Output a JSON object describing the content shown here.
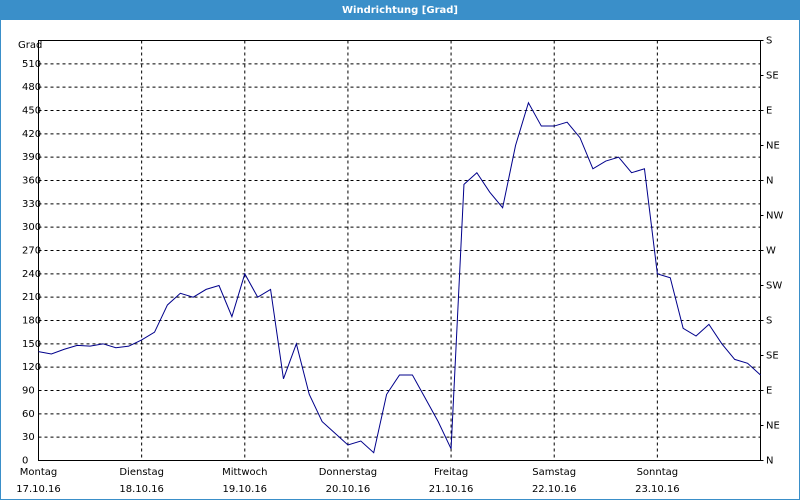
{
  "chart_data": {
    "type": "line",
    "title": "Windrichtung [Grad]",
    "y_label": "Grad",
    "categories": [
      "17.10.16",
      null,
      null,
      null,
      null,
      null,
      null,
      null,
      "18.10.16",
      null,
      null,
      null,
      null,
      null,
      null,
      null,
      "19.10.16",
      null,
      null,
      null,
      null,
      null,
      null,
      null,
      "20.10.16",
      null,
      null,
      null,
      null,
      null,
      null,
      null,
      "21.10.16",
      null,
      null,
      null,
      null,
      null,
      null,
      null,
      "22.10.16",
      null,
      null,
      null,
      null,
      null,
      null,
      null,
      "23.10.16",
      null,
      null,
      null,
      null,
      null,
      null,
      null,
      null
    ],
    "weekdays": [
      "Montag",
      null,
      null,
      null,
      null,
      null,
      null,
      null,
      "Dienstag",
      null,
      null,
      null,
      null,
      null,
      null,
      null,
      "Mittwoch",
      null,
      null,
      null,
      null,
      null,
      null,
      null,
      "Donnerstag",
      null,
      null,
      null,
      null,
      null,
      null,
      null,
      "Freitag",
      null,
      null,
      null,
      null,
      null,
      null,
      null,
      "Samstag",
      null,
      null,
      null,
      null,
      null,
      null,
      null,
      "Sonntag",
      null,
      null,
      null,
      null,
      null,
      null,
      null,
      null
    ],
    "series": [
      {
        "name": "Windrichtung",
        "color": "#00008b",
        "values": [
          140,
          137,
          143,
          148,
          147,
          150,
          145,
          147,
          155,
          165,
          200,
          215,
          210,
          220,
          225,
          185,
          240,
          210,
          220,
          105,
          150,
          85,
          50,
          35,
          20,
          25,
          10,
          85,
          110,
          110,
          80,
          50,
          15,
          355,
          370,
          345,
          325,
          405,
          460,
          430,
          430,
          435,
          415,
          375,
          385,
          390,
          370,
          375,
          240,
          235,
          170,
          160,
          175,
          150,
          130,
          125,
          110
        ]
      }
    ],
    "ylim": [
      0,
      540
    ],
    "yticks": [
      0,
      30,
      60,
      90,
      120,
      150,
      180,
      210,
      240,
      270,
      300,
      330,
      360,
      390,
      420,
      450,
      480,
      510
    ],
    "y2lim": [
      0,
      540
    ],
    "y2ticks": [
      {
        "value": 0,
        "label": "N"
      },
      {
        "value": 45,
        "label": "NE"
      },
      {
        "value": 90,
        "label": "E"
      },
      {
        "value": 135,
        "label": "SE"
      },
      {
        "value": 180,
        "label": "S"
      },
      {
        "value": 225,
        "label": "SW"
      },
      {
        "value": 270,
        "label": "W"
      },
      {
        "value": 315,
        "label": "NW"
      },
      {
        "value": 360,
        "label": "N"
      },
      {
        "value": 405,
        "label": "NE"
      },
      {
        "value": 450,
        "label": "E"
      },
      {
        "value": 495,
        "label": "SE"
      },
      {
        "value": 540,
        "label": "S"
      }
    ],
    "grid": true
  }
}
